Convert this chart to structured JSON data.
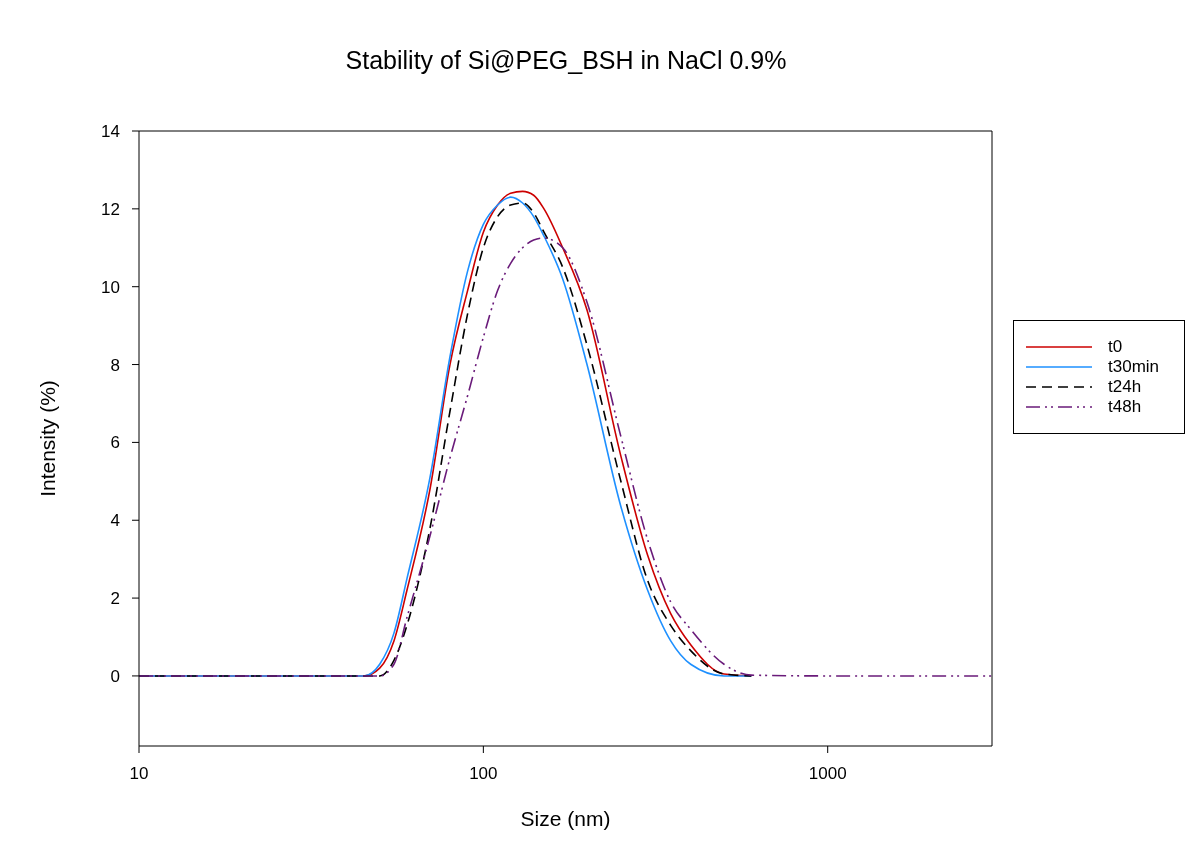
{
  "chart_data": {
    "type": "line",
    "title": "Stability of Si@PEG_BSH in NaCl 0.9%",
    "xlabel": "Size (nm)",
    "ylabel": "Intensity (%)",
    "x": [
      10,
      40,
      45,
      50,
      55,
      60,
      70,
      80,
      90,
      100,
      110,
      120,
      130,
      140,
      150,
      170,
      200,
      250,
      300,
      350,
      400,
      500,
      600,
      1000,
      3000
    ],
    "series": [
      {
        "name": "t0",
        "color": "#cc0000",
        "line_style": "solid",
        "values": [
          0,
          0,
          0,
          0.2,
          0.9,
          2.2,
          4.8,
          8.0,
          9.9,
          11.4,
          12.1,
          12.4,
          12.45,
          12.35,
          12.0,
          11.0,
          9.4,
          5.7,
          3.1,
          1.6,
          0.8,
          0.05,
          0,
          null,
          null
        ]
      },
      {
        "name": "t30min",
        "color": "#1e90ff",
        "line_style": "solid",
        "values": [
          0,
          0,
          0,
          0.3,
          1.1,
          2.5,
          5.1,
          8.2,
          10.4,
          11.6,
          12.1,
          12.3,
          12.15,
          11.8,
          11.3,
          10.2,
          8.0,
          4.4,
          2.2,
          0.9,
          0.3,
          0,
          0,
          null,
          null
        ]
      },
      {
        "name": "t24h",
        "color": "#000000",
        "line_style": "dashed",
        "values": [
          0,
          0,
          0,
          0,
          0.4,
          1.3,
          3.8,
          6.8,
          9.3,
          11.0,
          11.8,
          12.1,
          12.15,
          11.9,
          11.4,
          10.5,
          8.5,
          5.05,
          2.45,
          1.3,
          0.65,
          0.05,
          0,
          null,
          null
        ]
      },
      {
        "name": "t48h",
        "color": "#6a1b7a",
        "line_style": "dashdot",
        "values": [
          0,
          0,
          0,
          0,
          0.3,
          1.5,
          3.6,
          5.6,
          7.2,
          8.7,
          9.9,
          10.6,
          11.0,
          11.2,
          11.25,
          11.0,
          9.6,
          6.2,
          3.5,
          1.9,
          1.2,
          0.3,
          0.02,
          0,
          0
        ]
      }
    ],
    "log": "x",
    "xlim": [
      10,
      3000
    ],
    "xticks": [
      10,
      100,
      1000
    ],
    "ylim": [
      -1.8,
      14
    ],
    "yticks": [
      0,
      2,
      4,
      6,
      8,
      10,
      12,
      14
    ],
    "grid": false,
    "legend": "right",
    "marker": "none"
  }
}
